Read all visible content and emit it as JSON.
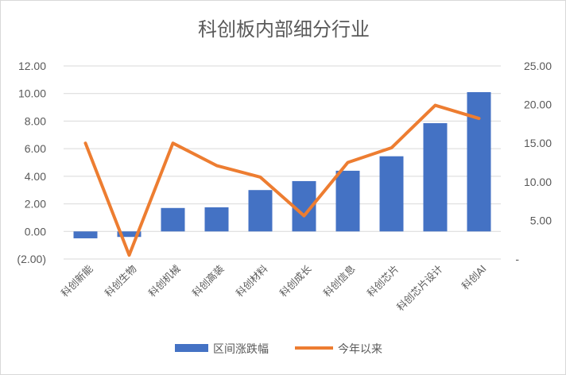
{
  "chart_data": {
    "type": "bar+line",
    "title": "科创板内部细分行业",
    "categories": [
      "科创新能",
      "科创生物",
      "科创机械",
      "科创高装",
      "科创材料",
      "科创成长",
      "科创信息",
      "科创芯片",
      "科创芯片设计",
      "科创AI"
    ],
    "series": [
      {
        "name": "区间涨跌幅",
        "type": "bar",
        "axis": "left",
        "color": "#4472C4",
        "values": [
          -0.5,
          -0.4,
          1.7,
          1.75,
          3.0,
          3.65,
          4.4,
          5.45,
          7.85,
          10.1
        ]
      },
      {
        "name": "今年以来",
        "type": "line",
        "axis": "right",
        "color": "#ED7D31",
        "values": [
          15.0,
          0.5,
          15.0,
          12.1,
          10.6,
          5.6,
          12.5,
          14.4,
          19.9,
          18.2
        ]
      }
    ],
    "y_left": {
      "min": -2,
      "max": 12,
      "step": 2,
      "tick_labels": [
        "(2.00)",
        "0.00",
        "2.00",
        "4.00",
        "6.00",
        "8.00",
        "10.00",
        "12.00"
      ],
      "negative_label_color": "#C00000"
    },
    "y_right": {
      "min": 0,
      "max": 25,
      "step": 5,
      "tick_labels": [
        "-",
        "5.00",
        "10.00",
        "15.00",
        "20.00",
        "25.00"
      ]
    },
    "grid": true,
    "legend_position": "bottom",
    "colors": {
      "bar": "#4472C4",
      "line": "#ED7D31",
      "grid": "#d9d9d9",
      "text": "#595959"
    }
  }
}
